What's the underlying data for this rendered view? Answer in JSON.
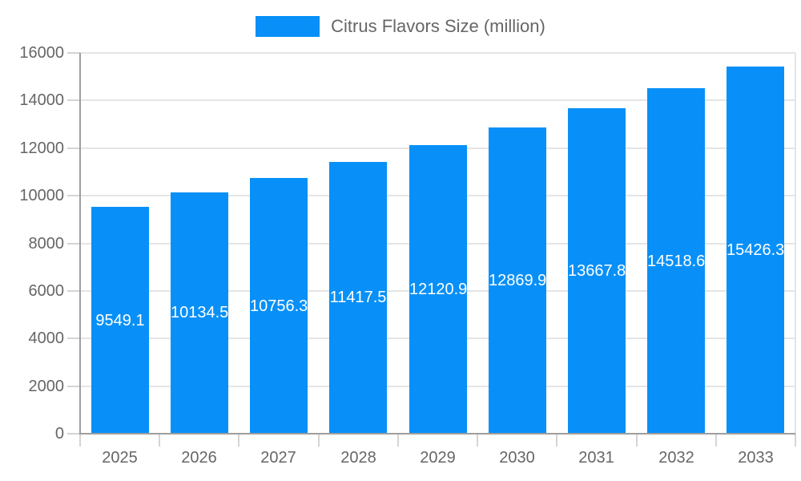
{
  "page": {
    "background": "#ffffff"
  },
  "chart_data": {
    "type": "bar",
    "title": "Citrus Flavors Size (million)",
    "series_name": "Citrus Flavors Size (million)",
    "categories": [
      "2025",
      "2026",
      "2027",
      "2028",
      "2029",
      "2030",
      "2031",
      "2032",
      "2033"
    ],
    "values": [
      9549.1,
      10134.5,
      10756.3,
      11417.5,
      12120.9,
      12869.9,
      13667.8,
      14518.6,
      15426.3
    ],
    "value_labels": [
      "9549.1",
      "10134.5",
      "10756.3",
      "11417.5",
      "12120.9",
      "12869.9",
      "13667.8",
      "14518.6",
      "15426.3"
    ],
    "xlabel": "",
    "ylabel": "",
    "ylim": [
      0,
      16000
    ],
    "yticks": [
      0,
      2000,
      4000,
      6000,
      8000,
      10000,
      12000,
      14000,
      16000
    ],
    "grid": true,
    "legend_position": "top",
    "bar_color": "#0890f8",
    "value_label_color": "#ffffff",
    "axis_text_color": "#666666",
    "gridline_color": "#e5e5e5",
    "tick_color": "#d4d4d4",
    "axis_line_color": "#9e9e9e"
  }
}
